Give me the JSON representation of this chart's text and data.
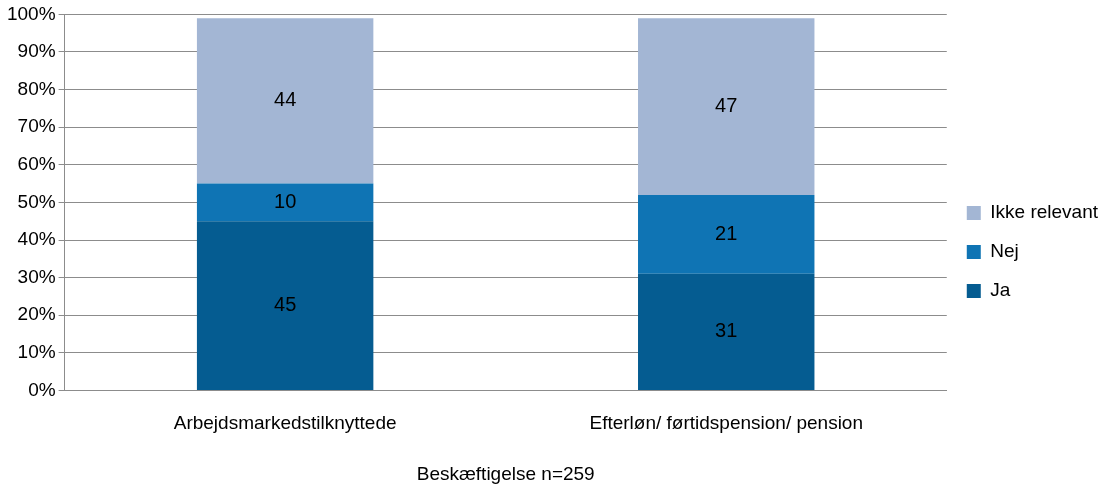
{
  "chart_data": {
    "type": "bar",
    "stacked": true,
    "xlabel": "Beskæftigelse n=259",
    "categories": [
      "Arbejdsmarkedstilknyttede",
      "Efterløn/ førtidspension/ pension"
    ],
    "series": [
      {
        "name": "Ja",
        "color": "#055c91",
        "values": [
          45,
          31
        ]
      },
      {
        "name": "Nej",
        "color": "#0f74b4",
        "values": [
          10,
          21
        ]
      },
      {
        "name": "Ikke relevant",
        "color": "#a3b6d4",
        "values": [
          44,
          47
        ]
      }
    ],
    "ylim": [
      0,
      100
    ],
    "yticks": [
      {
        "value": 0,
        "label": "0%"
      },
      {
        "value": 10,
        "label": "10%"
      },
      {
        "value": 20,
        "label": "20%"
      },
      {
        "value": 30,
        "label": "30%"
      },
      {
        "value": 40,
        "label": "40%"
      },
      {
        "value": 50,
        "label": "50%"
      },
      {
        "value": 60,
        "label": "60%"
      },
      {
        "value": 70,
        "label": "70%"
      },
      {
        "value": 80,
        "label": "80%"
      },
      {
        "value": 90,
        "label": "90%"
      },
      {
        "value": 100,
        "label": "100%"
      }
    ],
    "grid": "y",
    "legend": "right",
    "data_labels": true
  }
}
